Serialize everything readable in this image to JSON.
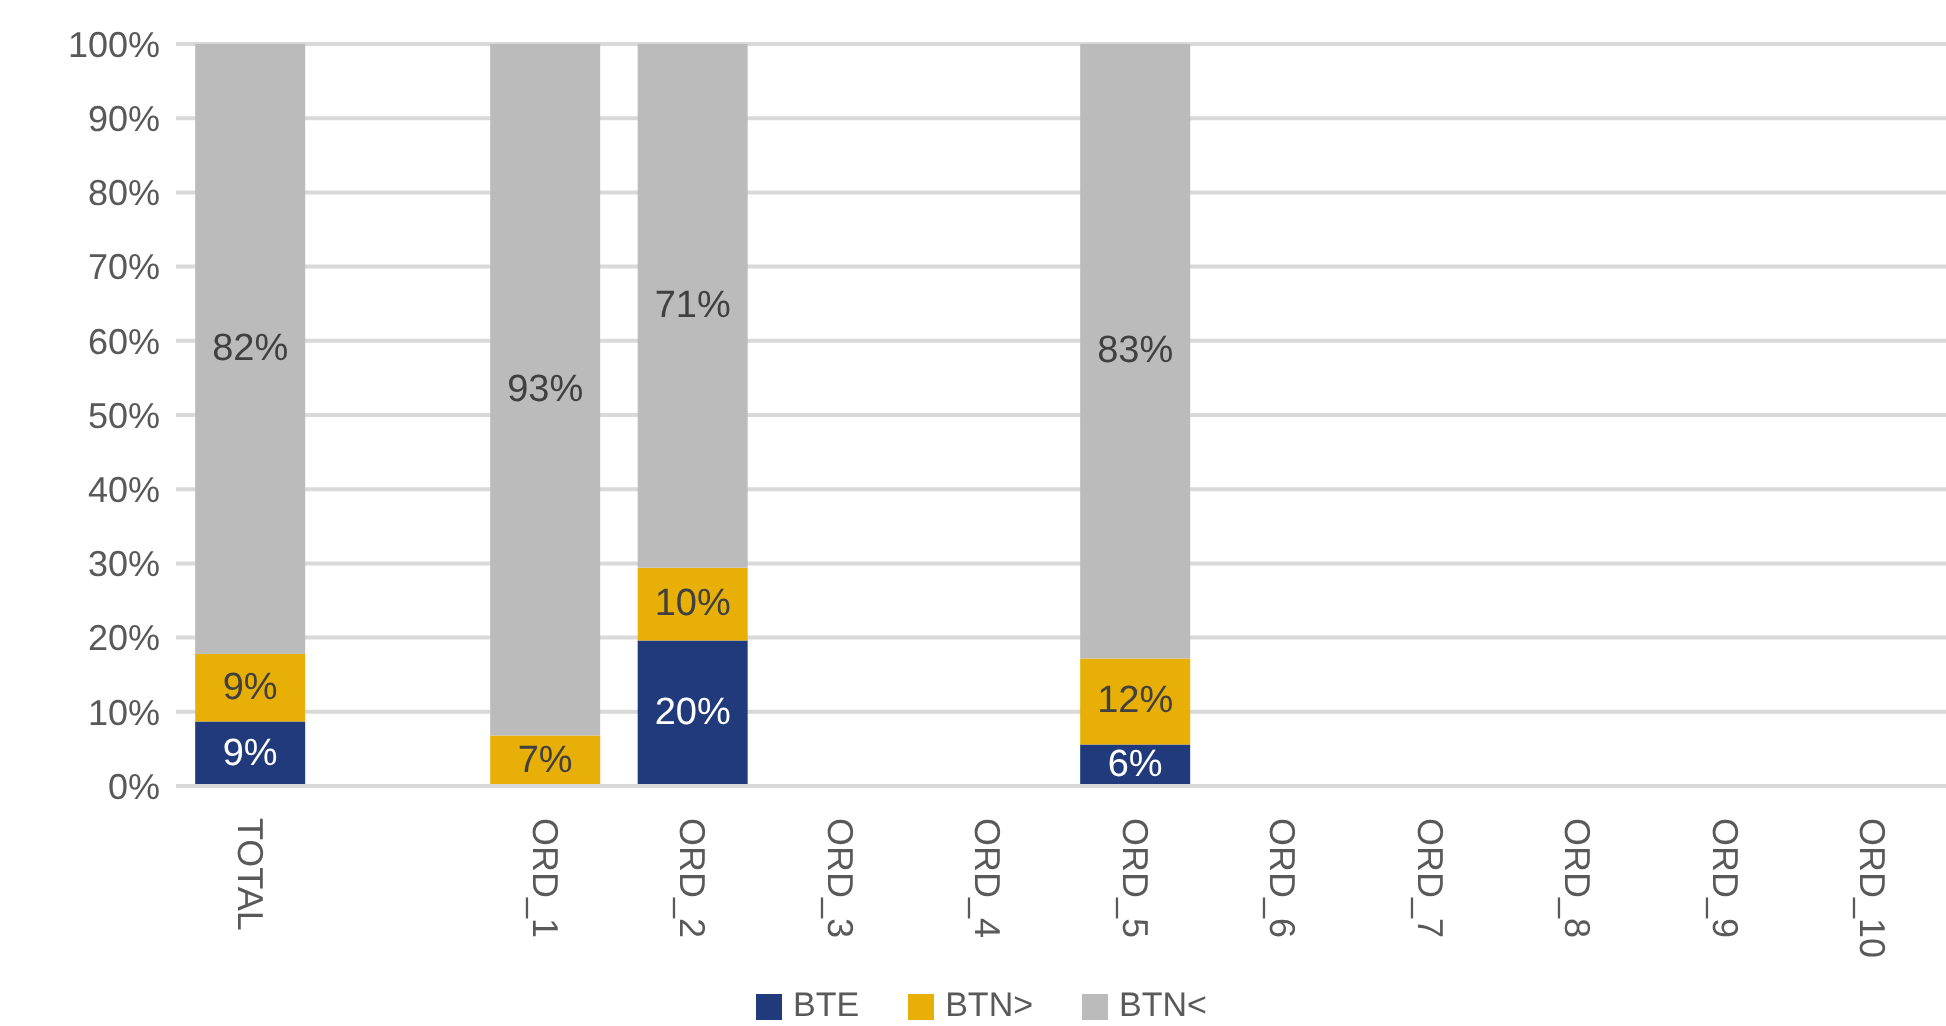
{
  "chart_data": {
    "type": "bar",
    "stacked": true,
    "categories": [
      "TOTAL",
      null,
      "ORD_1",
      "ORD_2",
      "ORD_3",
      "ORD_4",
      "ORD_5",
      "ORD_6",
      "ORD_7",
      "ORD_8",
      "ORD_9",
      "ORD_10"
    ],
    "series": [
      {
        "name": "BTE",
        "color": "#203a7c",
        "values": [
          8.7,
          null,
          0,
          19.6,
          null,
          null,
          5.6,
          null,
          null,
          null,
          null,
          null
        ],
        "value_labels": [
          "9%",
          null,
          null,
          "20%",
          null,
          null,
          "6%",
          null,
          null,
          null,
          null,
          null
        ]
      },
      {
        "name": "BTN>",
        "color": "#e8b007",
        "values": [
          9.1,
          null,
          6.8,
          9.8,
          null,
          null,
          11.6,
          null,
          null,
          null,
          null,
          null
        ],
        "value_labels": [
          "9%",
          null,
          "7%",
          "10%",
          null,
          null,
          "12%",
          null,
          null,
          null,
          null,
          null
        ]
      },
      {
        "name": "BTN<",
        "color": "#bbbbbb",
        "values": [
          82.2,
          null,
          93.2,
          70.6,
          null,
          null,
          82.8,
          null,
          null,
          null,
          null,
          null
        ],
        "value_labels": [
          "82%",
          null,
          "93%",
          "71%",
          null,
          null,
          "83%",
          null,
          null,
          null,
          null,
          null
        ]
      }
    ],
    "ylim": [
      0,
      100
    ],
    "yticks": [
      {
        "value": 0,
        "label": "0%"
      },
      {
        "value": 10,
        "label": "10%"
      },
      {
        "value": 20,
        "label": "20%"
      },
      {
        "value": 30,
        "label": "30%"
      },
      {
        "value": 40,
        "label": "40%"
      },
      {
        "value": 50,
        "label": "50%"
      },
      {
        "value": 60,
        "label": "60%"
      },
      {
        "value": 70,
        "label": "70%"
      },
      {
        "value": 80,
        "label": "80%"
      },
      {
        "value": 90,
        "label": "90%"
      },
      {
        "value": 100,
        "label": "100%"
      }
    ],
    "grid": "y",
    "legend": "bottom"
  }
}
